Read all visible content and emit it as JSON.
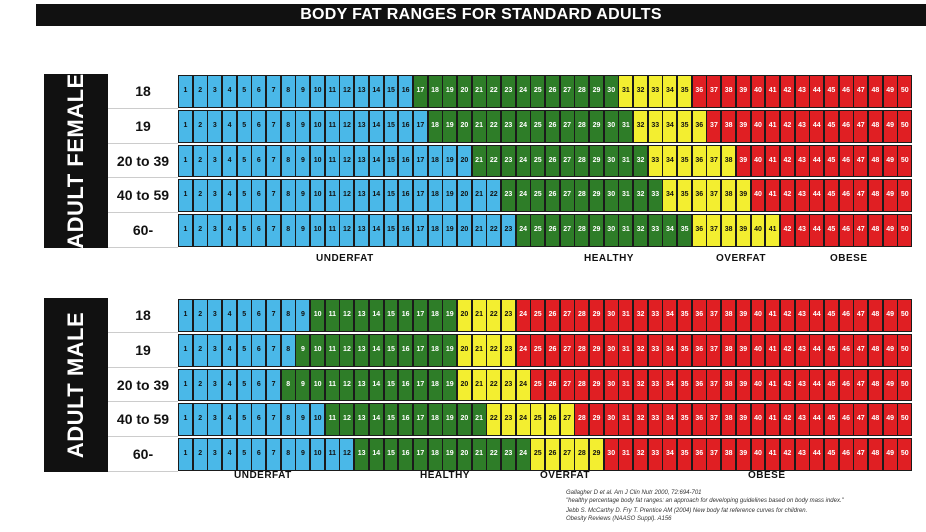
{
  "title": "BODY FAT RANGES FOR STANDARD ADULTS",
  "colors": {
    "underfat": "#4ab8e8",
    "healthy": "#2e7d28",
    "overfat": "#f3ee30",
    "obese": "#e01f23",
    "label_bg": "#111111"
  },
  "chart_data": [
    {
      "type": "table",
      "group": "ADULT FEMALE",
      "columns": [
        1,
        2,
        3,
        4,
        5,
        6,
        7,
        8,
        9,
        10,
        11,
        12,
        13,
        14,
        15,
        16,
        17,
        18,
        19,
        20,
        21,
        22,
        23,
        24,
        25,
        26,
        27,
        28,
        29,
        30,
        31,
        32,
        33,
        34,
        35,
        36,
        37,
        38,
        39,
        40,
        41,
        42,
        43,
        44,
        45,
        46,
        47,
        48,
        49,
        50
      ],
      "rows": [
        {
          "age": "18",
          "healthy_start": 17,
          "overfat_start": 31,
          "obese_start": 36
        },
        {
          "age": "19",
          "healthy_start": 18,
          "overfat_start": 32,
          "obese_start": 37
        },
        {
          "age": "20 to 39",
          "healthy_start": 21,
          "overfat_start": 33,
          "obese_start": 39
        },
        {
          "age": "40 to 59",
          "healthy_start": 23,
          "overfat_start": 34,
          "obese_start": 40
        },
        {
          "age": "60-",
          "healthy_start": 24,
          "overfat_start": 36,
          "obese_start": 42
        }
      ],
      "categories": [
        "UNDERFAT",
        "HEALTHY",
        "OVERFAT",
        "OBESE"
      ]
    },
    {
      "type": "table",
      "group": "ADULT MALE",
      "columns": [
        1,
        2,
        3,
        4,
        5,
        6,
        7,
        8,
        9,
        10,
        11,
        12,
        13,
        14,
        15,
        16,
        17,
        18,
        19,
        20,
        21,
        22,
        23,
        24,
        25,
        26,
        27,
        28,
        29,
        30,
        31,
        32,
        33,
        34,
        35,
        36,
        37,
        38,
        39,
        40,
        41,
        42,
        43,
        44,
        45,
        46,
        47,
        48,
        49,
        50
      ],
      "rows": [
        {
          "age": "18",
          "healthy_start": 10,
          "overfat_start": 20,
          "obese_start": 24
        },
        {
          "age": "19",
          "healthy_start": 9,
          "overfat_start": 20,
          "obese_start": 24
        },
        {
          "age": "20 to 39",
          "healthy_start": 8,
          "overfat_start": 20,
          "obese_start": 25
        },
        {
          "age": "40 to 59",
          "healthy_start": 11,
          "overfat_start": 22,
          "obese_start": 28
        },
        {
          "age": "60-",
          "healthy_start": 13,
          "overfat_start": 25,
          "obese_start": 30
        }
      ],
      "categories": [
        "UNDERFAT",
        "HEALTHY",
        "OVERFAT",
        "OBESE"
      ]
    }
  ],
  "references": [
    "Gallagher D et al. Am J Clin Nutr 2000, 72:694-701",
    "\"healthy percentage body fat ranges: an approach for developing guidelines based on body mass index.\"",
    "Jebb S. McCarthy D. Fry T. Prentice AM (2004)  New body fat reference curves for children.",
    "Obesity Reviews (NAASO Suppl). A156"
  ]
}
